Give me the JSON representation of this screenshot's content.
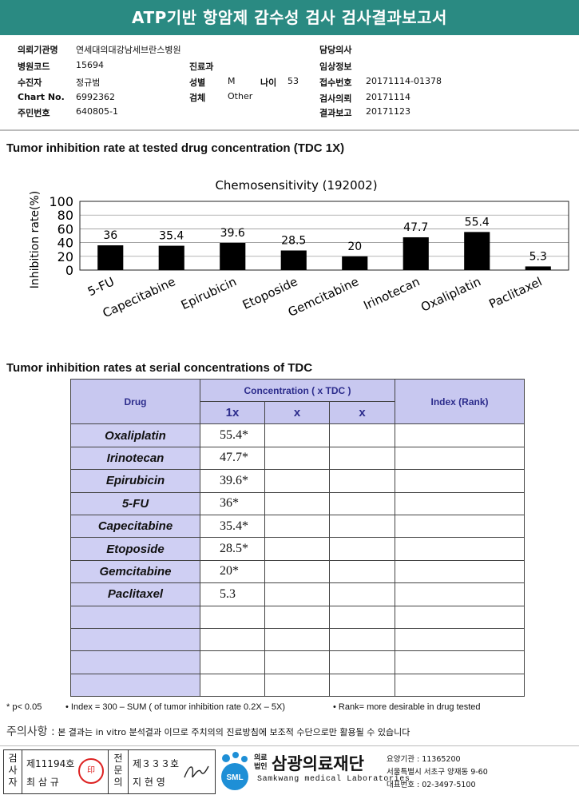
{
  "title": "ATP기반 항암제 감수성 검사 검사결과보고서",
  "info": {
    "institution_label": "의뢰기관명",
    "institution": "연세대의대강남세브란스병원",
    "hospital_code_label": "병원코드",
    "hospital_code": "15694",
    "patient_label": "수진자",
    "patient": "정규범",
    "chart_label": "Chart No.",
    "chart_no": "6992362",
    "id_label": "주민번호",
    "id_no": "640805-1",
    "dept_label": "진료과",
    "dept": "",
    "sex_label": "성별",
    "sex": "M",
    "age_label": "나이",
    "age": "53",
    "specimen_label": "검체",
    "specimen": "Other",
    "doctor_label": "담당의사",
    "doctor": "",
    "clinical_label": "임상정보",
    "clinical": "",
    "receipt_label": "접수번호",
    "receipt": "20171114-01378",
    "request_label": "검사의뢰",
    "request": "20171114",
    "report_label": "결과보고",
    "report": "20171123"
  },
  "section1_title": "Tumor inhibition rate at tested drug concentration (TDC 1X)",
  "section2_title": "Tumor inhibition rates at serial concentrations of TDC",
  "chart_data": {
    "type": "bar",
    "title": "Chemosensitivity (192002)",
    "ylabel": "Inhibition rate(%)",
    "xlabel": "",
    "ylim": [
      0,
      100
    ],
    "yticks": [
      0,
      20,
      40,
      60,
      80,
      100
    ],
    "categories": [
      "5-FU",
      "Capecitabine",
      "Epirubicin",
      "Etoposide",
      "Gemcitabine",
      "Irinotecan",
      "Oxaliplatin",
      "Paclitaxel"
    ],
    "values": [
      36,
      35.4,
      39.6,
      28.5,
      20,
      47.7,
      55.4,
      5.3
    ],
    "labels": [
      "36",
      "35.4",
      "39.6",
      "28.5",
      "20",
      "47.7",
      "55.4",
      "5.3"
    ],
    "bar_color": "#000000",
    "grid": true
  },
  "table": {
    "drug_header": "Drug",
    "conc_header": "Concentration ( x TDC )",
    "index_header": "Index (Rank)",
    "sub_headers": [
      "1x",
      "x",
      "x"
    ],
    "rows": [
      {
        "drug": "Oxaliplatin",
        "c1": "55.4*"
      },
      {
        "drug": "Irinotecan",
        "c1": "47.7*"
      },
      {
        "drug": "Epirubicin",
        "c1": "39.6*"
      },
      {
        "drug": "5-FU",
        "c1": "36*"
      },
      {
        "drug": "Capecitabine",
        "c1": "35.4*"
      },
      {
        "drug": "Etoposide",
        "c1": "28.5*"
      },
      {
        "drug": "Gemcitabine",
        "c1": "20*"
      },
      {
        "drug": "Paclitaxel",
        "c1": "5.3"
      },
      {
        "drug": "",
        "c1": ""
      },
      {
        "drug": "",
        "c1": ""
      },
      {
        "drug": "",
        "c1": ""
      },
      {
        "drug": "",
        "c1": ""
      }
    ]
  },
  "footnotes": {
    "p": "* p< 0.05",
    "index": "• Index = 300 – SUM ( of tumor inhibition rate 0.2X – 5X)",
    "rank": "• Rank= more desirable in drug tested"
  },
  "notice_label": "주의사항 :",
  "notice_text": "본 결과는 in vitro 분석결과 이므로 주치의의 진료방침에 보조적 수단으로만 활용될 수 있습니다",
  "signature": {
    "tester_label": "검사자",
    "tester_no": "제11194호",
    "tester_name": "최 삼 규",
    "specialist_label": "전문의",
    "specialist_no": "제３３３호",
    "specialist_name": "지 현 영"
  },
  "lab": {
    "corp_label": "의료법인",
    "name": "삼광의료재단",
    "name_en": "Samkwang medical Laboratories",
    "logo_text": "SML",
    "code": "요양기관 : 11365200",
    "address": "서울특별시 서초구 양재동 9-60",
    "phone": "대표번호 : 02-3497-5100"
  }
}
